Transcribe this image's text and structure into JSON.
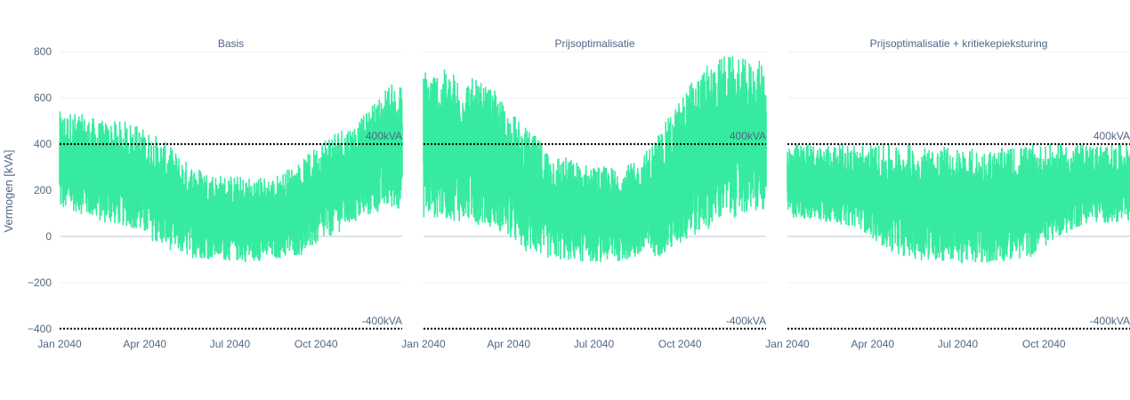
{
  "chart_data": {
    "type": "line",
    "ylabel": "Vermogen [kVA]",
    "ylim": [
      -420,
      820
    ],
    "yticks": [
      -400,
      -200,
      0,
      200,
      400,
      600,
      800
    ],
    "xlim": [
      "2040-01-01",
      "2041-01-01"
    ],
    "xticks": [
      {
        "date": "2040-01-01",
        "label": "Jan 2040"
      },
      {
        "date": "2040-04-01",
        "label": "Apr 2040"
      },
      {
        "date": "2040-07-01",
        "label": "Jul 2040"
      },
      {
        "date": "2040-10-01",
        "label": "Oct 2040"
      }
    ],
    "grid": true,
    "series_color": "#36eba0",
    "limit_color": "#000000",
    "limits": [
      {
        "value": 400,
        "label": "400kVA"
      },
      {
        "value": -400,
        "label": "-400kVA"
      }
    ],
    "panels": [
      {
        "title": "Basis",
        "months": [
          "2040-01",
          "2040-02",
          "2040-03",
          "2040-04",
          "2040-05",
          "2040-06",
          "2040-07",
          "2040-08",
          "2040-09",
          "2040-10",
          "2040-11",
          "2040-12"
        ],
        "min": [
          110,
          60,
          40,
          -40,
          -90,
          -100,
          -110,
          -100,
          -80,
          0,
          70,
          120
        ],
        "max": [
          540,
          500,
          500,
          430,
          320,
          270,
          260,
          260,
          330,
          460,
          500,
          660
        ]
      },
      {
        "title": "Prijsoptimalisatie",
        "months": [
          "2040-01",
          "2040-02",
          "2040-03",
          "2040-04",
          "2040-05",
          "2040-06",
          "2040-07",
          "2040-08",
          "2040-09",
          "2040-10",
          "2040-11",
          "2040-12"
        ],
        "min": [
          80,
          60,
          40,
          -60,
          -100,
          -110,
          -110,
          -100,
          -80,
          0,
          70,
          100
        ],
        "max": [
          730,
          700,
          630,
          480,
          370,
          320,
          300,
          320,
          500,
          700,
          790,
          760
        ]
      },
      {
        "title": "Prijsoptimalisatie + kritiekepieksturing",
        "months": [
          "2040-01",
          "2040-02",
          "2040-03",
          "2040-04",
          "2040-05",
          "2040-06",
          "2040-07",
          "2040-08",
          "2040-09",
          "2040-10",
          "2040-11",
          "2040-12"
        ],
        "min": [
          80,
          60,
          40,
          -60,
          -100,
          -110,
          -120,
          -110,
          -90,
          0,
          60,
          60
        ],
        "max": [
          400,
          400,
          400,
          400,
          400,
          390,
          380,
          380,
          400,
          400,
          400,
          400
        ]
      }
    ]
  }
}
